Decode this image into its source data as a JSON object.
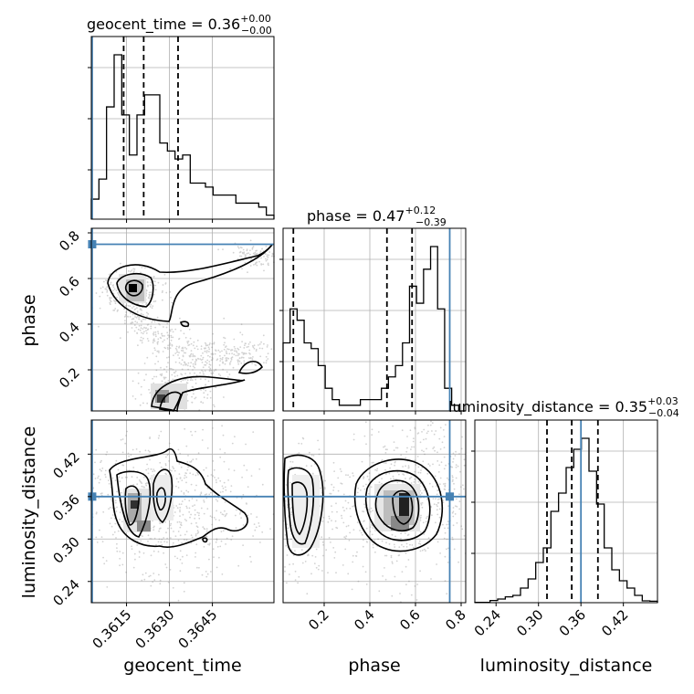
{
  "chart_data": {
    "type": "corner",
    "parameters": [
      "geocent_time",
      "phase",
      "luminosity_distance"
    ],
    "titles": [
      {
        "param": "geocent_time",
        "prefix": "geocent_time = ",
        "median": "0.36",
        "plus": "+0.00",
        "minus": "−0.00"
      },
      {
        "param": "phase",
        "prefix": "phase = ",
        "median": "0.47",
        "plus": "+0.12",
        "minus": "−0.39"
      },
      {
        "param": "luminosity_distance",
        "prefix": "luminosity_distance = ",
        "median": "0.35",
        "plus": "+0.03",
        "minus": "−0.04"
      }
    ],
    "axis_labels": {
      "x": [
        "geocent_time",
        "phase",
        "luminosity_distance"
      ],
      "y": [
        "phase",
        "luminosity_distance"
      ]
    },
    "ranges": {
      "geocent_time": [
        0.36027,
        0.36665
      ],
      "phase": [
        0.02,
        0.82
      ],
      "luminosity_distance": [
        0.21,
        0.4682
      ]
    },
    "ticks": {
      "geocent_time": {
        "values": [
          0.3615,
          0.363,
          0.3645
        ],
        "labels": [
          "0.3615",
          "0.3630",
          "0.3645"
        ]
      },
      "phase": {
        "values": [
          0.2,
          0.4,
          0.6,
          0.8
        ],
        "labels": [
          "0.2",
          "0.4",
          "0.6",
          "0.8"
        ]
      },
      "luminosity_distance": {
        "values": [
          0.24,
          0.3,
          0.36,
          0.42
        ],
        "labels": [
          "0.24",
          "0.30",
          "0.36",
          "0.42"
        ]
      }
    },
    "truths": {
      "geocent_time": 0.3603,
      "phase": 0.75,
      "luminosity_distance": 0.36
    },
    "quantiles": {
      "geocent_time": [
        0.3614,
        0.3621,
        0.3633
      ],
      "phase": [
        0.065,
        0.475,
        0.585
      ],
      "luminosity_distance": [
        0.312,
        0.347,
        0.384
      ]
    },
    "histograms": {
      "geocent_time": [
        5,
        10,
        28,
        41,
        26,
        16,
        26,
        31,
        31,
        19,
        17,
        15,
        16,
        9,
        9,
        8,
        6,
        6,
        6,
        4,
        4,
        4,
        3,
        1
      ],
      "phase": [
        12,
        18,
        16,
        12,
        11,
        8,
        4,
        2,
        1,
        1,
        1,
        2,
        2,
        2,
        4,
        6,
        8,
        12,
        22,
        19,
        25,
        29,
        18,
        4,
        1,
        0
      ],
      "luminosity_distance": [
        0.1,
        0.1,
        0.6,
        1,
        1.6,
        2,
        4,
        6.5,
        11,
        15,
        25,
        30,
        37,
        42,
        45,
        36,
        27,
        15,
        9,
        6,
        4,
        2,
        0.5,
        0.4
      ]
    },
    "grid": true,
    "colors": {
      "truth": "#4682b4",
      "line": "#000000",
      "grid": "#b0b0b0",
      "sample": "#808080"
    }
  }
}
